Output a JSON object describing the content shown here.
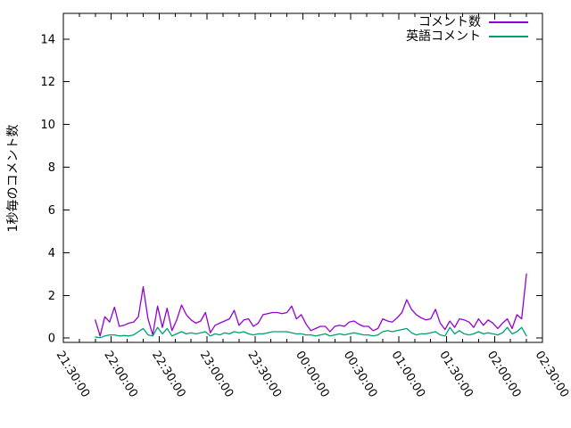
{
  "chart_data": {
    "type": "line",
    "title": "",
    "xlabel": "",
    "ylabel": "1秒毎のコメント数",
    "ylim": [
      0,
      15
    ],
    "y_ticks": [
      0,
      2,
      4,
      6,
      8,
      10,
      12,
      14
    ],
    "x_tick_labels": [
      "21:30:00",
      "22:00:00",
      "22:30:00",
      "23:00:00",
      "23:30:00",
      "00:00:00",
      "00:30:00",
      "01:00:00",
      "01:30:00",
      "02:00:00",
      "02:30:00"
    ],
    "x_minor_tick_minutes": 10,
    "grid": false,
    "legend_position": "top-right-inside",
    "x": [
      "21:50",
      "21:53",
      "21:56",
      "21:59",
      "22:02",
      "22:05",
      "22:08",
      "22:11",
      "22:14",
      "22:17",
      "22:20",
      "22:23",
      "22:26",
      "22:29",
      "22:32",
      "22:35",
      "22:38",
      "22:41",
      "22:44",
      "22:47",
      "22:50",
      "22:53",
      "22:56",
      "22:59",
      "23:02",
      "23:05",
      "23:08",
      "23:11",
      "23:14",
      "23:17",
      "23:20",
      "23:23",
      "23:26",
      "23:29",
      "23:32",
      "23:35",
      "23:38",
      "23:41",
      "23:44",
      "23:47",
      "23:50",
      "23:53",
      "23:56",
      "23:59",
      "00:02",
      "00:05",
      "00:08",
      "00:11",
      "00:14",
      "00:17",
      "00:20",
      "00:23",
      "00:26",
      "00:29",
      "00:32",
      "00:35",
      "00:38",
      "00:41",
      "00:44",
      "00:47",
      "00:50",
      "00:53",
      "00:56",
      "00:59",
      "01:02",
      "01:05",
      "01:08",
      "01:11",
      "01:14",
      "01:17",
      "01:20",
      "01:23",
      "01:26",
      "01:29",
      "01:32",
      "01:35",
      "01:38",
      "01:41",
      "01:44",
      "01:47",
      "01:50",
      "01:53",
      "01:56",
      "01:59",
      "02:02",
      "02:05",
      "02:08",
      "02:11",
      "02:14",
      "02:17",
      "02:20"
    ],
    "series": [
      {
        "name": "コメント数",
        "color": "#9400d3",
        "values": [
          0.85,
          0.1,
          1.0,
          0.75,
          1.45,
          0.55,
          0.6,
          0.7,
          0.75,
          1.0,
          2.4,
          0.9,
          0.15,
          1.5,
          0.5,
          1.4,
          0.35,
          0.85,
          1.55,
          1.1,
          0.85,
          0.7,
          0.8,
          1.2,
          0.25,
          0.6,
          0.7,
          0.8,
          0.9,
          1.3,
          0.6,
          0.85,
          0.9,
          0.55,
          0.7,
          1.1,
          1.15,
          1.2,
          1.2,
          1.15,
          1.2,
          1.5,
          0.9,
          1.1,
          0.65,
          0.35,
          0.45,
          0.55,
          0.55,
          0.3,
          0.55,
          0.6,
          0.55,
          0.75,
          0.8,
          0.65,
          0.55,
          0.55,
          0.35,
          0.45,
          0.9,
          0.8,
          0.75,
          0.95,
          1.2,
          1.8,
          1.35,
          1.1,
          0.95,
          0.85,
          0.9,
          1.35,
          0.7,
          0.4,
          0.8,
          0.5,
          0.9,
          0.85,
          0.75,
          0.5,
          0.9,
          0.6,
          0.85,
          0.7,
          0.45,
          0.7,
          0.9,
          0.45,
          1.1,
          0.9,
          3.0
        ]
      },
      {
        "name": "英語コメント",
        "color": "#009e73",
        "values": [
          0.05,
          0.02,
          0.1,
          0.15,
          0.15,
          0.1,
          0.12,
          0.1,
          0.15,
          0.3,
          0.45,
          0.15,
          0.1,
          0.5,
          0.2,
          0.45,
          0.1,
          0.2,
          0.3,
          0.2,
          0.25,
          0.2,
          0.25,
          0.3,
          0.1,
          0.2,
          0.15,
          0.25,
          0.2,
          0.3,
          0.25,
          0.3,
          0.2,
          0.15,
          0.2,
          0.2,
          0.25,
          0.3,
          0.3,
          0.3,
          0.3,
          0.25,
          0.2,
          0.2,
          0.15,
          0.15,
          0.1,
          0.15,
          0.2,
          0.1,
          0.15,
          0.2,
          0.15,
          0.2,
          0.25,
          0.2,
          0.15,
          0.15,
          0.1,
          0.15,
          0.3,
          0.35,
          0.3,
          0.35,
          0.4,
          0.45,
          0.25,
          0.15,
          0.2,
          0.2,
          0.25,
          0.3,
          0.15,
          0.1,
          0.5,
          0.2,
          0.35,
          0.2,
          0.15,
          0.2,
          0.3,
          0.2,
          0.25,
          0.2,
          0.15,
          0.25,
          0.5,
          0.2,
          0.3,
          0.5,
          0.1
        ]
      }
    ]
  },
  "colors": {
    "background": "#ffffff",
    "axis": "#000000",
    "text": "#000000"
  }
}
